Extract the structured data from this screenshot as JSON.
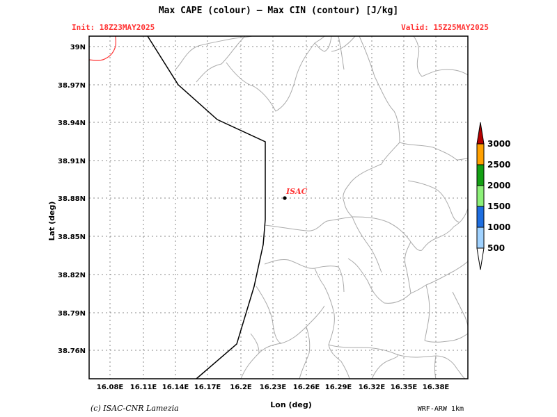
{
  "title": "Max CAPE (colour) — Max CIN (contour) [J/kg]",
  "init_label": "Init: 18Z23MAY2025",
  "valid_label": "Valid: 15Z25MAY2025",
  "xaxis": {
    "label": "Lon (deg)",
    "ticks": [
      "16.08E",
      "16.11E",
      "16.14E",
      "16.17E",
      "16.2E",
      "16.23E",
      "16.26E",
      "16.29E",
      "16.32E",
      "16.35E",
      "16.38E"
    ]
  },
  "yaxis": {
    "label": "Lat (deg)",
    "ticks": [
      "39N",
      "38.97N",
      "38.94N",
      "38.91N",
      "38.88N",
      "38.85N",
      "38.82N",
      "38.79N",
      "38.76N"
    ]
  },
  "site": {
    "name": "ISAC",
    "lon": 16.23,
    "lat": 38.88
  },
  "colorbar": {
    "labels": [
      "500",
      "1000",
      "1500",
      "2000",
      "2500",
      "3000"
    ],
    "colors": {
      "under": "#ffffff",
      "c500": "#a0d2ff",
      "c1000": "#1e6ee0",
      "c1500": "#8cf078",
      "c2000": "#14a014",
      "c2500": "#ffa000",
      "over": "#b40000"
    }
  },
  "footer_left": "(c) ISAC-CNR Lamezia",
  "footer_right": "WRF-ARW 1km",
  "colors": {
    "grid": "#888888",
    "boundary": "#aaaaaa",
    "coast": "#000000",
    "cin_contour": "#ff3333",
    "annotation": "#ff3333"
  }
}
